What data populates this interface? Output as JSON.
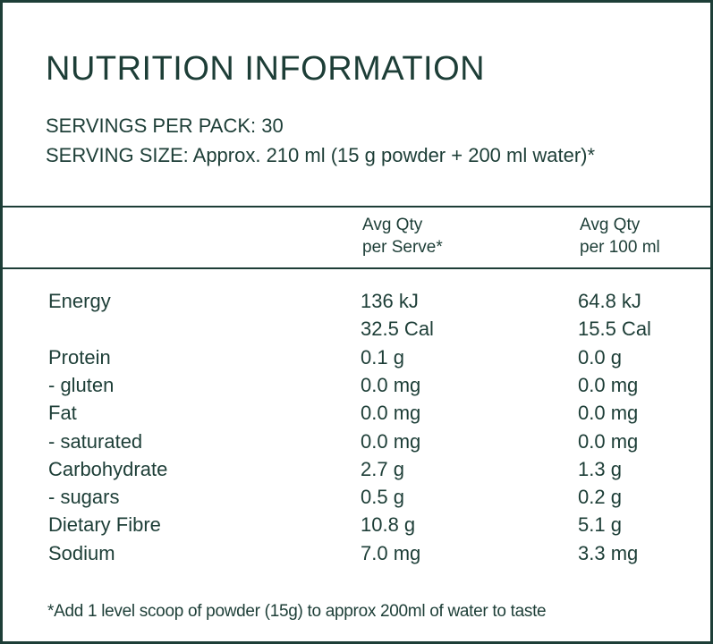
{
  "header": {
    "title": "NUTRITION INFORMATION",
    "servings_per_pack": "SERVINGS PER PACK: 30",
    "serving_size": "SERVING SIZE: Approx. 210 ml (15 g powder + 200 ml water)*"
  },
  "table": {
    "columns": [
      [
        "Avg Qty",
        "per Serve*"
      ],
      [
        "Avg Qty",
        "per 100 ml"
      ]
    ],
    "rows": [
      [
        [
          "Energy"
        ],
        [
          "136 kJ",
          "32.5 Cal"
        ],
        [
          "64.8 kJ",
          "15.5 Cal"
        ]
      ],
      [
        [
          "Protein"
        ],
        [
          "0.1 g"
        ],
        [
          "0.0 g"
        ]
      ],
      [
        [
          "- gluten"
        ],
        [
          "0.0 mg"
        ],
        [
          "0.0 mg"
        ]
      ],
      [
        [
          "Fat"
        ],
        [
          "0.0 mg"
        ],
        [
          "0.0 mg"
        ]
      ],
      [
        [
          "- saturated"
        ],
        [
          "0.0 mg"
        ],
        [
          "0.0 mg"
        ]
      ],
      [
        [
          "Carbohydrate"
        ],
        [
          "2.7 g"
        ],
        [
          "1.3 g"
        ]
      ],
      [
        [
          "- sugars"
        ],
        [
          "0.5 g"
        ],
        [
          "0.2 g"
        ]
      ],
      [
        [
          "Dietary Fibre"
        ],
        [
          "10.8 g"
        ],
        [
          "5.1 g"
        ]
      ],
      [
        [
          "Sodium"
        ],
        [
          "7.0 mg"
        ],
        [
          "3.3 mg"
        ]
      ]
    ]
  },
  "footnote": "*Add 1 level scoop of powder (15g) to approx 200ml of water to taste"
}
